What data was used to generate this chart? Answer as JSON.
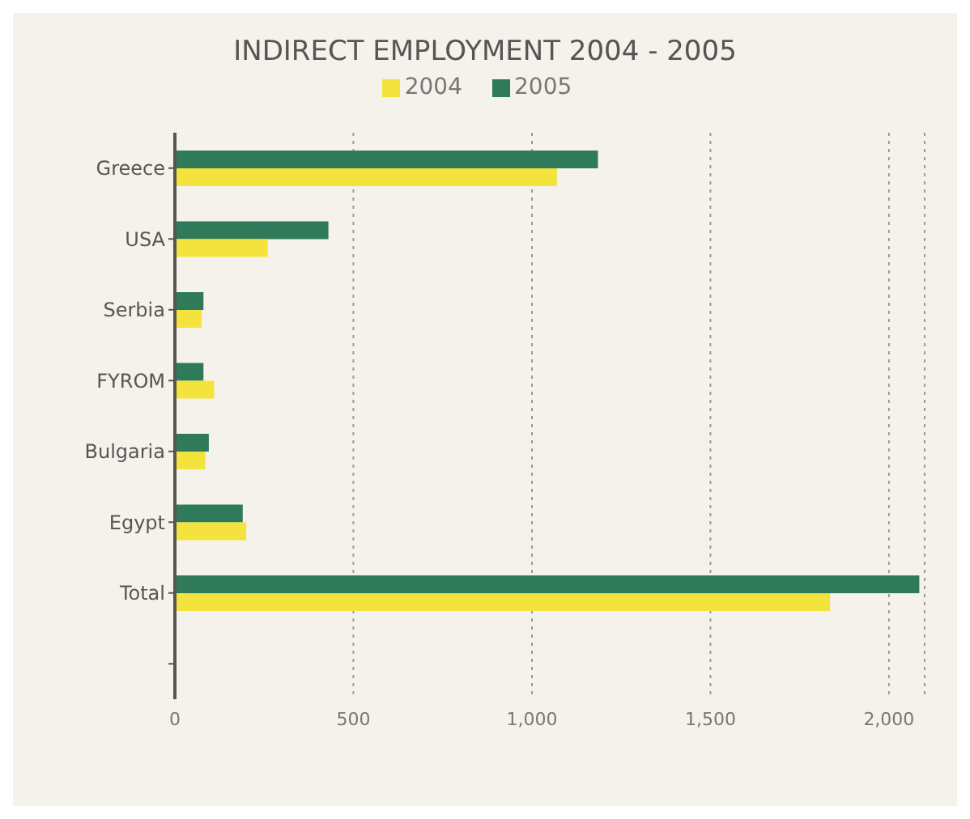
{
  "chart_data": {
    "type": "bar",
    "orientation": "horizontal",
    "title": "INDIRECT EMPLOYMENT  2004 - 2005",
    "categories": [
      "Greece",
      "USA",
      "Serbia",
      "FYROM",
      "Bulgaria",
      "Egypt",
      "Total",
      null
    ],
    "series": [
      {
        "name": "2004",
        "color": "#f3e33c",
        "values": [
          1070,
          260,
          75,
          110,
          85,
          200,
          1835,
          null
        ]
      },
      {
        "name": "2005",
        "color": "#2f7a58",
        "values": [
          1185,
          430,
          80,
          80,
          95,
          190,
          2085,
          null
        ]
      }
    ],
    "xlim": [
      0,
      2100
    ],
    "xticks": [
      0,
      500,
      {
        "value": 1000,
        "label": "1,000"
      },
      {
        "value": 1500,
        "label": "1,500"
      },
      {
        "value": 2000,
        "label": "2,000"
      }
    ],
    "grid": "x",
    "legend": "top"
  }
}
